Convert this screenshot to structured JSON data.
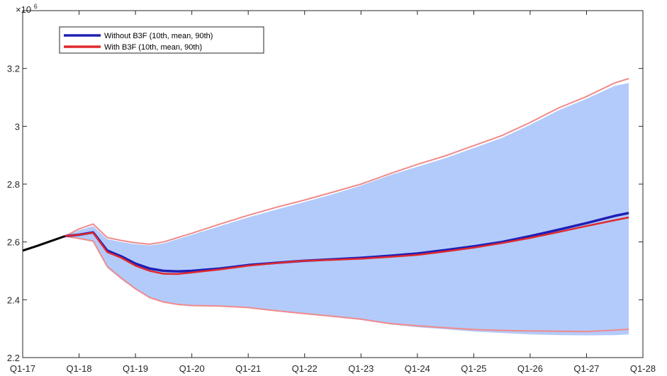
{
  "chart_data": {
    "type": "line",
    "title": "",
    "xlabel": "",
    "ylabel": "",
    "y_exponent_label": "×10",
    "y_exponent_power": "6",
    "y_scale_factor": 1000000,
    "xlim": [
      0,
      44
    ],
    "ylim": [
      2.2,
      3.4
    ],
    "x_tick_positions": [
      0,
      4,
      8,
      12,
      16,
      20,
      24,
      28,
      32,
      36,
      40,
      44
    ],
    "x_tick_labels": [
      "Q1-17",
      "Q1-18",
      "Q1-19",
      "Q1-20",
      "Q1-21",
      "Q1-22",
      "Q1-23",
      "Q1-24",
      "Q1-25",
      "Q1-26",
      "Q1-27",
      "Q1-28"
    ],
    "y_tick_values": [
      2.2,
      2.4,
      2.6,
      2.8,
      3.0,
      3.2
    ],
    "y_tick_labels": [
      "2.2",
      "2.4",
      "2.6",
      "2.8",
      "3",
      "3.2"
    ],
    "grid": false,
    "legend_position": "top-left",
    "colors": {
      "history": "#000000",
      "without": "#1f1fb4",
      "with": "#e0282d",
      "band_fill": "#b3cbfb",
      "with_band_edge": "#f08a8a",
      "axis": "#262626"
    },
    "history": {
      "x": [
        0,
        1,
        2,
        3
      ],
      "y": [
        2.57,
        2.586,
        2.603,
        2.62
      ]
    },
    "series": [
      {
        "name": "Without B3F (10th, mean, 90th)",
        "x": [
          3,
          4,
          5,
          6,
          7,
          8,
          9,
          10,
          11,
          12,
          14,
          16,
          18,
          20,
          22,
          24,
          26,
          28,
          30,
          32,
          34,
          36,
          38,
          40,
          42,
          43
        ],
        "mean": [
          2.62,
          2.625,
          2.633,
          2.57,
          2.55,
          2.525,
          2.508,
          2.5,
          2.498,
          2.5,
          2.508,
          2.52,
          2.528,
          2.535,
          2.54,
          2.545,
          2.552,
          2.56,
          2.572,
          2.585,
          2.6,
          2.62,
          2.642,
          2.665,
          2.69,
          2.7
        ],
        "p10": [
          2.62,
          2.61,
          2.6,
          2.51,
          2.47,
          2.435,
          2.405,
          2.39,
          2.382,
          2.38,
          2.377,
          2.372,
          2.36,
          2.35,
          2.34,
          2.33,
          2.315,
          2.305,
          2.298,
          2.29,
          2.285,
          2.28,
          2.278,
          2.277,
          2.278,
          2.28
        ],
        "p90": [
          2.62,
          2.64,
          2.655,
          2.61,
          2.6,
          2.592,
          2.588,
          2.595,
          2.61,
          2.625,
          2.655,
          2.685,
          2.712,
          2.738,
          2.765,
          2.795,
          2.83,
          2.86,
          2.89,
          2.925,
          2.96,
          3.005,
          3.055,
          3.095,
          3.14,
          3.15
        ]
      },
      {
        "name": "With B3F (10th, mean, 90th)",
        "x": [
          3,
          4,
          5,
          6,
          7,
          8,
          9,
          10,
          11,
          12,
          14,
          16,
          18,
          20,
          22,
          24,
          26,
          28,
          30,
          32,
          34,
          36,
          38,
          40,
          42,
          43
        ],
        "mean": [
          2.62,
          2.625,
          2.632,
          2.565,
          2.545,
          2.518,
          2.5,
          2.49,
          2.489,
          2.494,
          2.505,
          2.518,
          2.527,
          2.535,
          2.538,
          2.542,
          2.548,
          2.555,
          2.567,
          2.58,
          2.596,
          2.614,
          2.634,
          2.655,
          2.675,
          2.685
        ],
        "p10": [
          2.62,
          2.612,
          2.603,
          2.515,
          2.475,
          2.438,
          2.408,
          2.392,
          2.384,
          2.38,
          2.378,
          2.373,
          2.362,
          2.352,
          2.343,
          2.333,
          2.318,
          2.31,
          2.303,
          2.297,
          2.294,
          2.292,
          2.291,
          2.29,
          2.295,
          2.298
        ],
        "p90": [
          2.62,
          2.645,
          2.662,
          2.615,
          2.605,
          2.597,
          2.592,
          2.6,
          2.615,
          2.63,
          2.662,
          2.692,
          2.72,
          2.745,
          2.772,
          2.8,
          2.835,
          2.868,
          2.898,
          2.933,
          2.968,
          3.013,
          3.063,
          3.103,
          3.15,
          3.165
        ]
      }
    ]
  }
}
